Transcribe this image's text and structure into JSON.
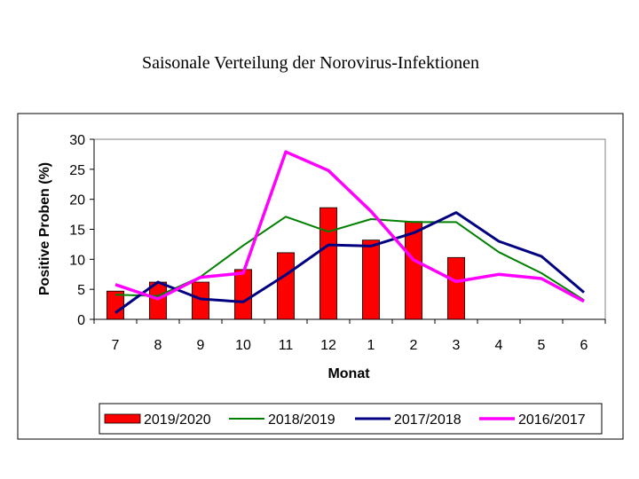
{
  "chart_data": {
    "type": "bar",
    "title": "Saisonale Verteilung der Norovirus-Infektionen",
    "xlabel": "Monat",
    "ylabel": "Positive Proben (%)",
    "ylim": [
      0,
      30
    ],
    "yticks": [
      0,
      5,
      10,
      15,
      20,
      25,
      30
    ],
    "categories": [
      "7",
      "8",
      "9",
      "10",
      "11",
      "12",
      "1",
      "2",
      "3",
      "4",
      "5",
      "6"
    ],
    "grid": false,
    "legend_position": "bottom",
    "series": [
      {
        "name": "2019/2020",
        "type": "bar",
        "color": "#ff0000",
        "values": [
          4.7,
          6.2,
          6.2,
          8.3,
          11.1,
          18.6,
          13.2,
          16.3,
          10.3,
          null,
          null,
          null
        ]
      },
      {
        "name": "2018/2019",
        "type": "line",
        "color": "#008000",
        "values": [
          4.1,
          3.9,
          7.1,
          12.3,
          17.1,
          14.6,
          16.7,
          16.2,
          16.2,
          11.2,
          7.7,
          3.2
        ]
      },
      {
        "name": "2017/2018",
        "type": "line",
        "color": "#000080",
        "values": [
          1.1,
          6.2,
          3.4,
          2.9,
          7.4,
          12.4,
          12.2,
          14.4,
          17.8,
          13.0,
          10.5,
          4.5
        ]
      },
      {
        "name": "2016/2017",
        "type": "line",
        "color": "#ff00ff",
        "values": [
          5.8,
          3.4,
          7.0,
          7.7,
          27.9,
          24.8,
          18.0,
          9.9,
          6.3,
          7.5,
          6.8,
          3.0
        ]
      }
    ]
  }
}
